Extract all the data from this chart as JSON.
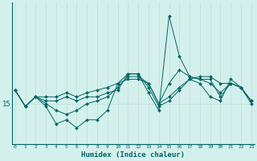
{
  "xlabel": "Humidex (Indice chaleur)",
  "background_color": "#d4f0ec",
  "line_color": "#006666",
  "grid_color": "#c0ddd8",
  "x_ticks": [
    0,
    1,
    2,
    3,
    4,
    5,
    6,
    7,
    8,
    9,
    10,
    11,
    12,
    13,
    14,
    15,
    16,
    17,
    18,
    19,
    20,
    21,
    22,
    23
  ],
  "y_tick_label": "15",
  "y_tick_value": 15.0,
  "ylim": [
    12.0,
    22.5
  ],
  "xlim": [
    -0.3,
    23.3
  ],
  "series": [
    [
      16.0,
      14.8,
      15.5,
      14.8,
      13.5,
      13.8,
      13.2,
      13.8,
      13.8,
      14.5,
      16.5,
      17.2,
      17.2,
      15.8,
      14.5,
      21.5,
      18.5,
      17.0,
      16.8,
      16.5,
      15.8,
      16.5,
      16.2,
      15.0
    ],
    [
      16.0,
      14.8,
      15.5,
      15.5,
      15.5,
      15.8,
      15.5,
      15.8,
      16.0,
      16.2,
      16.5,
      16.8,
      16.8,
      16.5,
      15.0,
      15.5,
      16.2,
      16.8,
      17.0,
      17.0,
      16.5,
      16.5,
      16.2,
      15.2
    ],
    [
      16.0,
      14.8,
      15.5,
      15.0,
      14.5,
      14.2,
      14.5,
      15.0,
      15.2,
      15.5,
      16.2,
      17.0,
      17.0,
      16.5,
      15.0,
      16.5,
      17.5,
      17.0,
      16.8,
      16.8,
      15.5,
      16.5,
      16.2,
      15.2
    ],
    [
      16.0,
      14.8,
      15.5,
      15.2,
      15.2,
      15.5,
      15.2,
      15.5,
      15.5,
      15.8,
      16.0,
      17.2,
      17.2,
      16.2,
      14.8,
      15.2,
      16.0,
      16.8,
      16.5,
      15.5,
      15.2,
      16.8,
      16.2,
      15.2
    ]
  ]
}
